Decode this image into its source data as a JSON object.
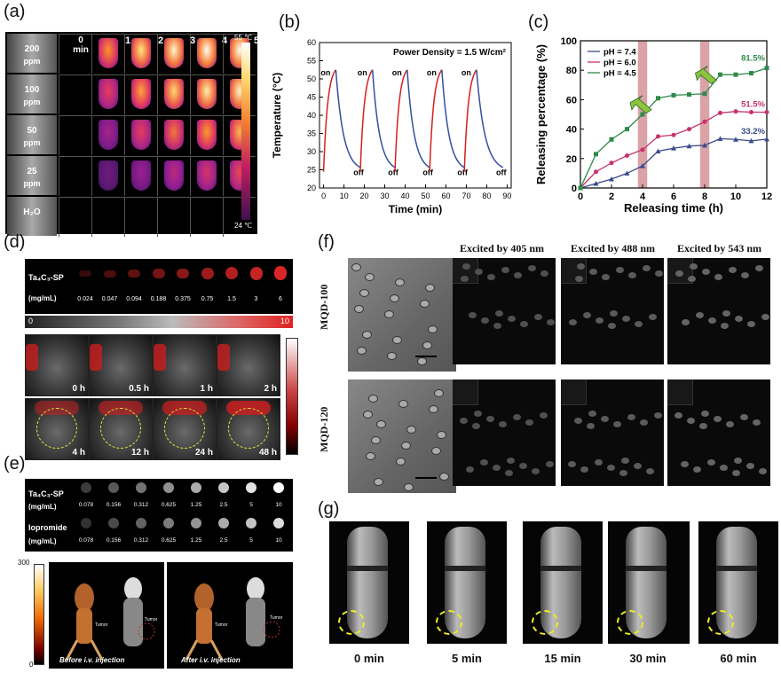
{
  "panel_labels": {
    "a": "(a)",
    "b": "(b)",
    "c": "(c)",
    "d": "(d)",
    "e": "(e)",
    "f": "(f)",
    "g": "(g)"
  },
  "panel_a": {
    "col_labels": [
      "0\nmin",
      "1",
      "2",
      "3",
      "4",
      "5"
    ],
    "col0_line1": "0",
    "col0_line2": "min",
    "rows": [
      {
        "conc": "200",
        "unit": "ppm"
      },
      {
        "conc": "100",
        "unit": "ppm"
      },
      {
        "conc": "50",
        "unit": "ppm"
      },
      {
        "conc": "25",
        "unit": "ppm"
      },
      {
        "conc": "H₂O",
        "unit": ""
      }
    ],
    "scale_max": "55 ℃",
    "scale_min": "24 ℃"
  },
  "panel_b": {
    "ylabel": "Temperature (°C)",
    "xlabel": "Time (min)",
    "annotation": "Power Density = 1.5 W/cm²",
    "on_label": "on",
    "off_label": "off",
    "xticks": [
      "0",
      "10",
      "20",
      "30",
      "40",
      "50",
      "60",
      "70",
      "80",
      "90"
    ],
    "yticks": [
      "20",
      "25",
      "30",
      "35",
      "40",
      "45",
      "50",
      "55",
      "60"
    ]
  },
  "panel_c": {
    "ylabel": "Releasing percentage (%)",
    "xlabel": "Releasing time (h)",
    "xticks": [
      "0",
      "2",
      "4",
      "6",
      "8",
      "10",
      "12"
    ],
    "yticks": [
      "0",
      "20",
      "40",
      "60",
      "80",
      "100"
    ],
    "legend": [
      "pH = 7.4",
      "pH = 6.0",
      "pH = 4.5"
    ],
    "end_labels": [
      "33.2%",
      "51.5%",
      "81.5%"
    ]
  },
  "chart_data": [
    {
      "type": "line",
      "title": "",
      "xlabel": "Time (min)",
      "ylabel": "Temperature (°C)",
      "xlim": [
        -2,
        92
      ],
      "ylim": [
        20,
        60
      ],
      "annotation": "Power Density = 1.5 W/cm²",
      "cycles": [
        {
          "on": 0,
          "peak_t": 6,
          "off_end": 18
        },
        {
          "on": 18,
          "peak_t": 24,
          "off_end": 35
        },
        {
          "on": 35,
          "peak_t": 41,
          "off_end": 52
        },
        {
          "on": 52,
          "peak_t": 58,
          "off_end": 69
        },
        {
          "on": 69,
          "peak_t": 75,
          "off_end": 88
        }
      ],
      "min_temp": 24.5,
      "max_temp": 52.5
    },
    {
      "type": "line",
      "xlabel": "Releasing time (h)",
      "ylabel": "Releasing percentage (%)",
      "xlim": [
        0,
        12
      ],
      "ylim": [
        0,
        100
      ],
      "x": [
        0,
        1,
        2,
        3,
        4,
        5,
        6,
        7,
        8,
        9,
        10,
        11,
        12
      ],
      "series": [
        {
          "name": "pH = 7.4",
          "color": "#3a4a8c",
          "values": [
            0,
            3,
            6,
            10,
            15,
            25,
            27,
            28.5,
            29,
            33.5,
            33,
            32,
            33.2
          ]
        },
        {
          "name": "pH = 6.0",
          "color": "#c8326e",
          "values": [
            0,
            11,
            17,
            22,
            26,
            35,
            36,
            40,
            45,
            51,
            52,
            51.5,
            51.5
          ]
        },
        {
          "name": "pH = 4.5",
          "color": "#2f8a4a",
          "values": [
            0,
            23,
            33,
            40,
            50,
            61,
            63,
            63.5,
            64,
            77,
            77,
            78,
            81.5
          ]
        }
      ],
      "highlight_x": [
        4,
        8
      ]
    }
  ],
  "panel_d": {
    "ta_label": "Ta₄C₃-SP",
    "unit": "(mg/mL)",
    "concs": [
      "0.024",
      "0.047",
      "0.094",
      "0.188",
      "0.375",
      "0.75",
      "1.5",
      "3",
      "6"
    ],
    "bar_min": "0",
    "bar_max": "10",
    "times": [
      "0 h",
      "0.5 h",
      "1 h",
      "2 h",
      "4 h",
      "12 h",
      "24 h",
      "48 h"
    ]
  },
  "panel_e": {
    "ta_label": "Ta₄C₃-SP",
    "iopromide": "Iopromide",
    "unit": "(mg/mL)",
    "concs": [
      "0.078",
      "0.156",
      "0.312",
      "0.625",
      "1.25",
      "2.5",
      "5",
      "10"
    ],
    "scale_max": "300",
    "scale_min": "0",
    "tumor": "Tumor",
    "before": "Before i.v. injection",
    "after": "After i.v. injection"
  },
  "panel_f": {
    "headers": [
      "Excited by 405 nm",
      "Excited by 488 nm",
      "Excited by 543 nm"
    ],
    "rows": [
      "MQD-100",
      "MQD-120"
    ]
  },
  "panel_g": {
    "times": [
      "0 min",
      "5 min",
      "15 min",
      "30 min",
      "60 min"
    ]
  }
}
